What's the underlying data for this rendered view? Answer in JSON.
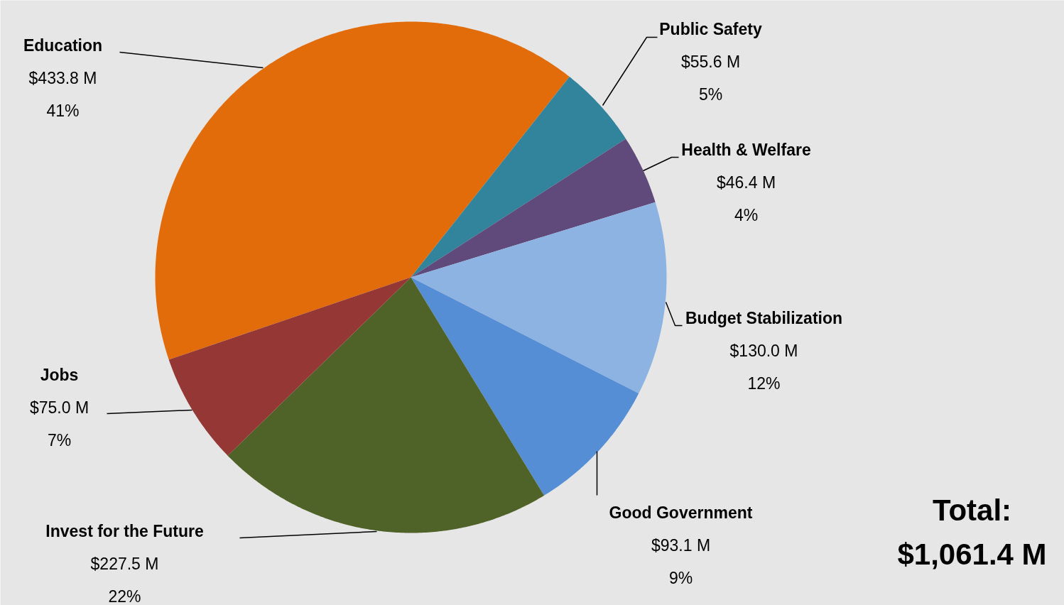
{
  "chart_data": {
    "type": "pie",
    "categories": [
      "Education",
      "Public Safety",
      "Health & Welfare",
      "Budget Stabilization",
      "Good Government",
      "Invest for the Future",
      "Jobs"
    ],
    "values": [
      433.8,
      55.6,
      46.4,
      130.0,
      93.1,
      227.5,
      75.0
    ],
    "colors": [
      "#e36c0a",
      "#31849b",
      "#604a7b",
      "#8db3e2",
      "#558ed5",
      "#4f6228",
      "#953735"
    ],
    "value_labels": [
      "$433.8 M\n41%",
      "$55.6 M\n5%",
      "$46.4 M\n4%",
      "$130.0 M\n12%",
      "$93.1 M\n9%",
      "$227.5 M\n22%",
      "$75.0 M\n7%"
    ],
    "annotations": [
      "Total:\n$1,061.4 M"
    ]
  }
}
